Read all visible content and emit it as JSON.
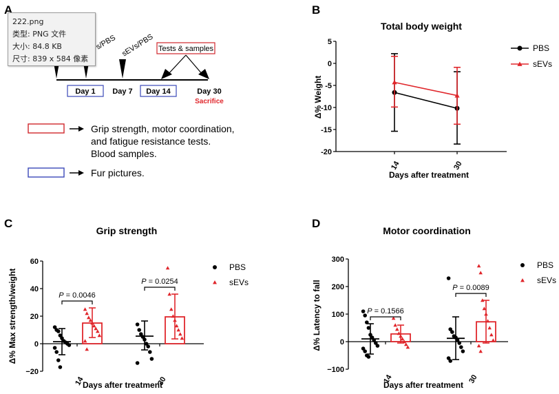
{
  "colors": {
    "pbs": "#000000",
    "sevs": "#e0262b",
    "box_red": "#d0262b",
    "box_blue": "#3a48b8"
  },
  "panelA": {
    "letter": "A",
    "timeline": {
      "marker_pbs": "s/PBS",
      "marker_sevs": "sEVs/PBS",
      "tests_box": "Tests & samples",
      "day1": "Day 1",
      "day7": "Day 7",
      "day14": "Day 14",
      "day30": "Day 30",
      "sacrifice": "Sacrifice"
    },
    "legend": {
      "red_line1": "Grip strength, motor coordination,",
      "red_line2": "and fatigue resistance tests.",
      "red_line3": "Blood samples.",
      "blue_line1": "Fur pictures."
    },
    "tooltip": {
      "name": "222.png",
      "type": "类型: PNG 文件",
      "size": "大小: 84.8 KB",
      "dims": "尺寸: 839 x 584 像素"
    }
  },
  "chart_data": [
    {
      "panel": "B",
      "type": "line",
      "title": "Total body weight",
      "xlabel": "Days after treatment",
      "ylabel": "Δ% Weight",
      "categories": [
        "14",
        "30"
      ],
      "ylim": [
        -20,
        5
      ],
      "yticks": [
        "5",
        "0",
        "-5",
        "-10",
        "-15",
        "-20"
      ],
      "legend_position": "right",
      "series": [
        {
          "name": "PBS",
          "values": [
            -6.6,
            -10.2
          ],
          "err_low": [
            -15.4,
            -18.3
          ],
          "err_high": [
            2.2,
            -1.9
          ]
        },
        {
          "name": "sEVs",
          "values": [
            -4.3,
            -7.3
          ],
          "err_low": [
            -9.9,
            -13.8
          ],
          "err_high": [
            1.6,
            -0.9
          ]
        }
      ]
    },
    {
      "panel": "C",
      "type": "bar",
      "title": "Grip strength",
      "xlabel": "Days after treatment",
      "ylabel": "Δ% Max strength/weight",
      "categories": [
        "14",
        "30"
      ],
      "ylim": [
        -20,
        60
      ],
      "yticks": [
        "60",
        "40",
        "20",
        "0",
        "−20"
      ],
      "legend_position": "right",
      "series": [
        {
          "name": "PBS",
          "values": [
            1.5,
            5.5
          ],
          "err_low": [
            -8,
            -4.5
          ],
          "err_high": [
            11,
            16.5
          ],
          "points": [
            [
              12,
              10,
              9,
              6,
              4,
              2,
              1,
              0,
              -1,
              -3,
              -6,
              -12,
              -17
            ],
            [
              14,
              10,
              7,
              5,
              3,
              0,
              -2,
              -6,
              -11,
              -14
            ]
          ]
        },
        {
          "name": "sEVs",
          "values": [
            15,
            19.5
          ],
          "err_low": [
            4.5,
            3.5
          ],
          "err_high": [
            26,
            36
          ],
          "points": [
            [
              25,
              22,
              19,
              17,
              15,
              13,
              11,
              9,
              6,
              2,
              -4
            ],
            [
              55,
              36,
              25,
              20,
              17,
              13,
              10,
              7,
              4
            ]
          ]
        }
      ],
      "annotations": [
        {
          "label": "P",
          "value": " = 0.0046",
          "category": "14"
        },
        {
          "label": "P",
          "value": " = 0.0254",
          "category": "30"
        }
      ]
    },
    {
      "panel": "D",
      "type": "bar",
      "title": "Motor coordination",
      "xlabel": "Days after treatment",
      "ylabel": "Δ% Latency to fall",
      "categories": [
        "14",
        "30"
      ],
      "ylim": [
        -100,
        300
      ],
      "yticks": [
        "300",
        "200",
        "100",
        "0",
        "−100"
      ],
      "legend_position": "right",
      "series": [
        {
          "name": "PBS",
          "values": [
            10,
            12
          ],
          "err_low": [
            -45,
            -65
          ],
          "err_high": [
            65,
            90
          ],
          "points": [
            [
              110,
              95,
              70,
              50,
              25,
              15,
              5,
              -5,
              -15,
              -25,
              -35,
              -50,
              -55
            ],
            [
              230,
              45,
              35,
              20,
              15,
              5,
              -5,
              -20,
              -35,
              -60,
              -70
            ]
          ]
        },
        {
          "name": "sEVs",
          "values": [
            28,
            72
          ],
          "err_low": [
            -5,
            -5
          ],
          "err_high": [
            60,
            150
          ],
          "points": [
            [
              85,
              60,
              45,
              30,
              20,
              10,
              0,
              -10,
              -20
            ],
            [
              275,
              250,
              150,
              120,
              100,
              75,
              50,
              25,
              5,
              -15,
              -35
            ]
          ]
        }
      ],
      "annotations": [
        {
          "label": "P",
          "value": " = 0.1566",
          "category": "14"
        },
        {
          "label": "P",
          "value": " = 0.0089",
          "category": "30"
        }
      ]
    }
  ]
}
